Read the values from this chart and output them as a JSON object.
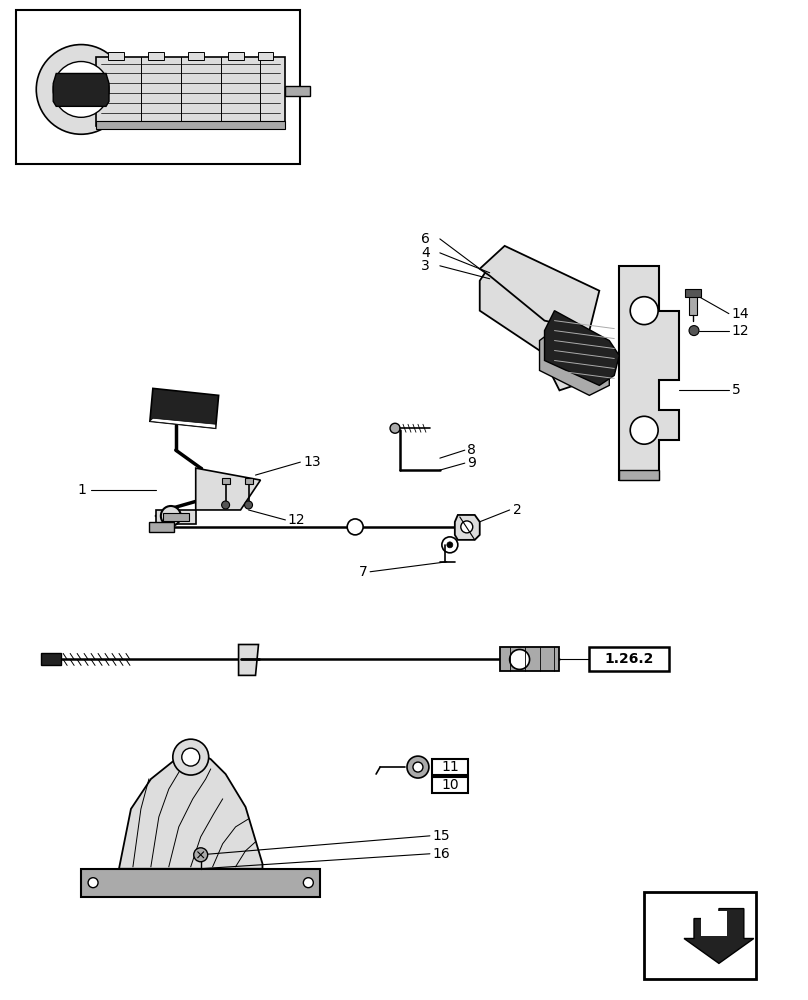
{
  "bg_color": "#ffffff",
  "fig_width": 8.08,
  "fig_height": 10.0,
  "dpi": 100
}
